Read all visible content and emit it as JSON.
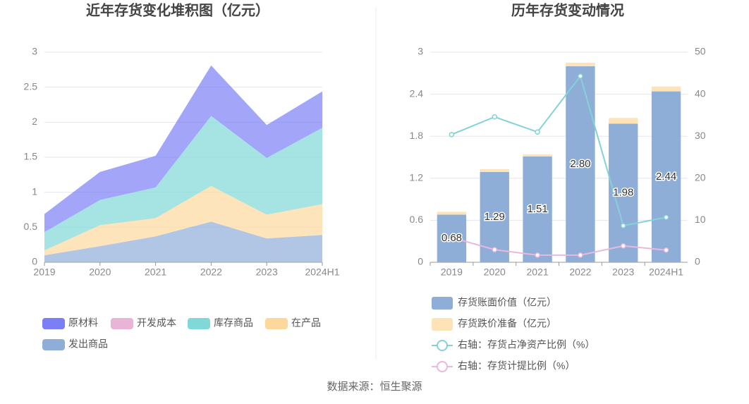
{
  "chart_data": [
    {
      "type": "stacked_area",
      "title": "近年存货变化堆积图（亿元）",
      "categories": [
        "2019",
        "2020",
        "2021",
        "2022",
        "2023",
        "2024H1"
      ],
      "series": [
        {
          "name": "原材料",
          "color": "#7b7ff5",
          "values": [
            0.26,
            0.4,
            0.45,
            0.72,
            0.47,
            0.52
          ]
        },
        {
          "name": "开发成本",
          "color": "#e8b4d8",
          "values": [
            0,
            0,
            0,
            0,
            0,
            0
          ]
        },
        {
          "name": "库存商品",
          "color": "#80d8d8",
          "values": [
            0.26,
            0.36,
            0.44,
            1.0,
            0.81,
            1.09
          ]
        },
        {
          "name": "在产品",
          "color": "#fdd89c",
          "values": [
            0.07,
            0.3,
            0.26,
            0.51,
            0.34,
            0.44
          ]
        },
        {
          "name": "发出商品",
          "color": "#8eaed8",
          "values": [
            0.1,
            0.23,
            0.37,
            0.58,
            0.34,
            0.39
          ]
        }
      ],
      "ylim": [
        0,
        3
      ],
      "yticks": [
        0,
        0.5,
        1,
        1.5,
        2,
        2.5,
        3
      ],
      "grid": true
    },
    {
      "type": "bar_line",
      "title": "历年存货变动情况",
      "categories": [
        "2019",
        "2020",
        "2021",
        "2022",
        "2023",
        "2024H1"
      ],
      "series": [
        {
          "name": "存货账面价值（亿元）",
          "kind": "bar",
          "color": "#8eaed8",
          "values": [
            0.68,
            1.29,
            1.51,
            2.8,
            1.98,
            2.44
          ],
          "value_labels": [
            "0.68",
            "1.29",
            "1.51",
            "2.80",
            "1.98",
            "2.44"
          ]
        },
        {
          "name": "存货跌价准备（亿元）",
          "kind": "bar",
          "color": "#fde3b5",
          "values": [
            0.04,
            0.04,
            0.03,
            0.05,
            0.08,
            0.07
          ]
        },
        {
          "name": "右轴：存货占净资产比例（%）",
          "kind": "line",
          "axis": "y2",
          "color": "#84d2d8",
          "values": [
            30.4,
            34.6,
            31.0,
            44.3,
            8.7,
            10.7
          ]
        },
        {
          "name": "右轴：存货计提比例（%）",
          "kind": "line",
          "axis": "y2",
          "color": "#eab8dc",
          "values": [
            5.9,
            3.0,
            1.7,
            1.7,
            3.9,
            2.9
          ]
        }
      ],
      "ylim": [
        0,
        3
      ],
      "yticks": [
        0,
        0.6,
        1.2,
        1.8,
        2.4,
        3
      ],
      "y2lim": [
        0,
        50
      ],
      "y2ticks": [
        0,
        10,
        20,
        30,
        40,
        50
      ],
      "grid": true
    }
  ],
  "source": "数据来源：恒生聚源"
}
